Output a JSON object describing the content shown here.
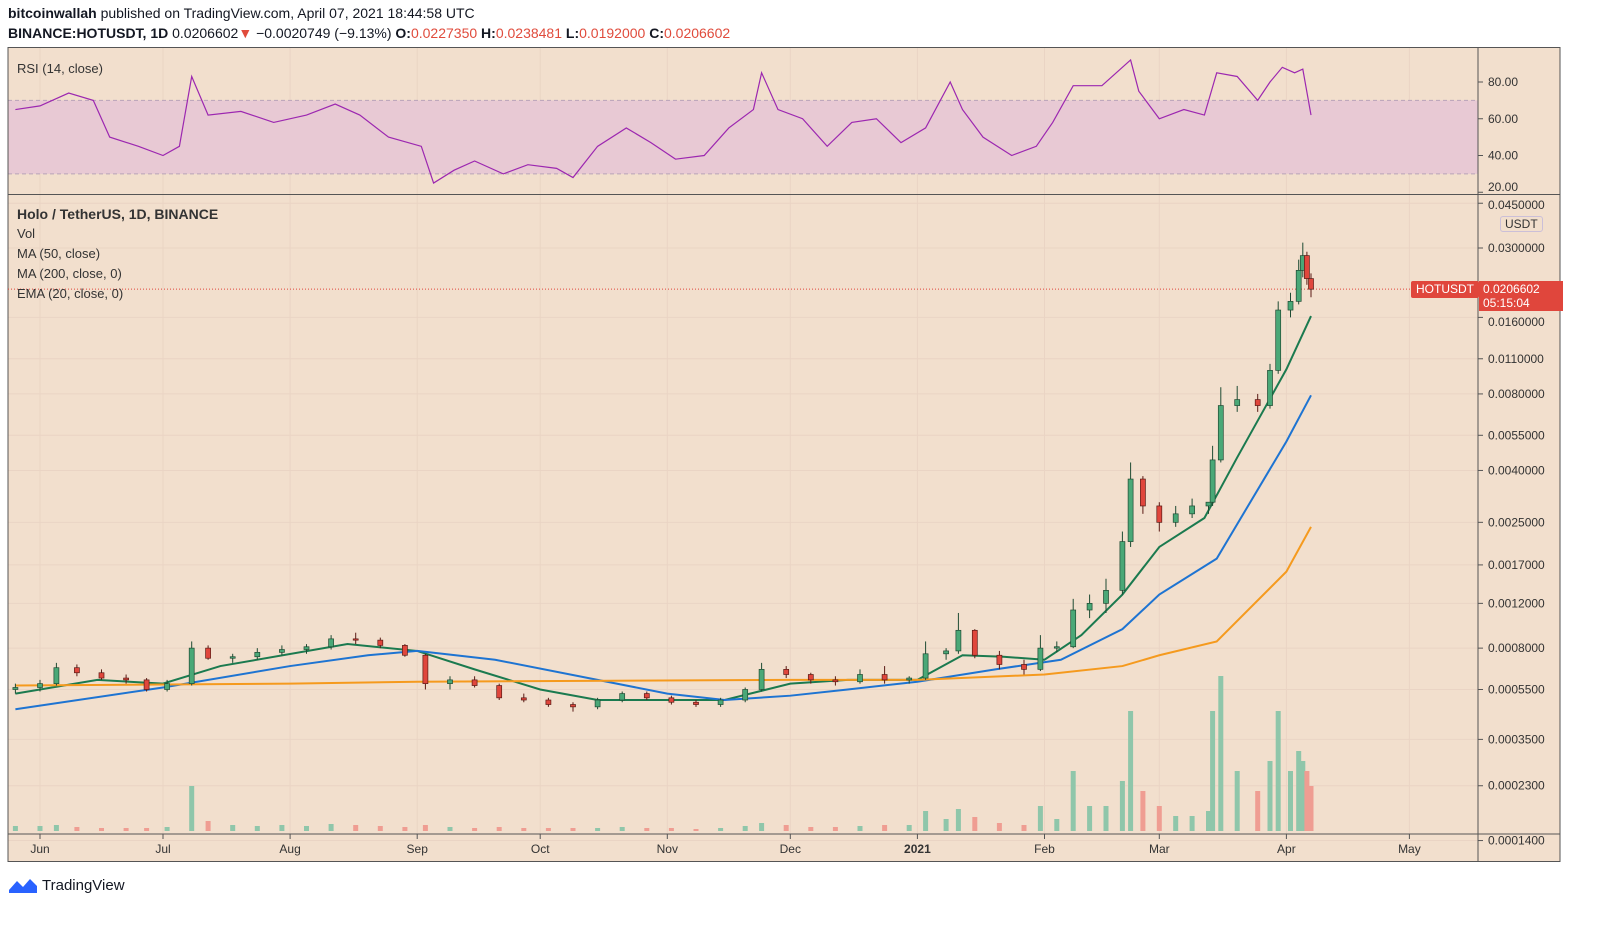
{
  "header": {
    "author": "bitcoinwallah",
    "published_text": "published on TradingView.com, April 07, 2021 18:44:58 UTC",
    "symbol": "BINANCE:HOTUSDT, 1D",
    "last": "0.0206602",
    "change": "−0.0020749 (−9.13%)",
    "o_label": "O:",
    "o": "0.0227350",
    "h_label": "H:",
    "h": "0.0238481",
    "l_label": "L:",
    "l": "0.0192000",
    "c_label": "C:",
    "c": "0.0206602"
  },
  "legend": {
    "rsi": "RSI (14, close)",
    "title": "Holo / TetherUS, 1D, BINANCE",
    "vol": "Vol",
    "ma50": "MA (50, close)",
    "ma200": "MA (200, close, 0)",
    "ema20": "EMA (20, close, 0)"
  },
  "price_label": {
    "symbol": "HOTUSDT",
    "price": "0.0206602",
    "countdown": "05:15:04",
    "currency": "USDT"
  },
  "footer": {
    "brand": "TradingView"
  },
  "colors": {
    "background": "#f2dfcd",
    "up": "#4aa877",
    "down": "#e0463c",
    "rsi": "#9c27b0",
    "ema20": "#1b7a4f",
    "ma50": "#1e74d2",
    "ma200": "#f59a1e"
  },
  "chart_data": [
    {
      "type": "line",
      "title": "RSI (14, close)",
      "yticks": [
        "20.00",
        "40.00",
        "60.00",
        "80.00"
      ],
      "band": [
        30,
        70
      ],
      "points": [
        [
          "2020-05-26",
          65
        ],
        [
          "2020-06-01",
          67
        ],
        [
          "2020-06-08",
          74
        ],
        [
          "2020-06-14",
          70
        ],
        [
          "2020-06-18",
          50
        ],
        [
          "2020-06-25",
          45
        ],
        [
          "2020-07-01",
          40
        ],
        [
          "2020-07-05",
          45
        ],
        [
          "2020-07-08",
          83
        ],
        [
          "2020-07-12",
          62
        ],
        [
          "2020-07-20",
          64
        ],
        [
          "2020-07-28",
          58
        ],
        [
          "2020-08-05",
          62
        ],
        [
          "2020-08-12",
          68
        ],
        [
          "2020-08-18",
          62
        ],
        [
          "2020-08-25",
          50
        ],
        [
          "2020-09-02",
          45
        ],
        [
          "2020-09-05",
          25
        ],
        [
          "2020-09-10",
          32
        ],
        [
          "2020-09-15",
          37
        ],
        [
          "2020-09-22",
          30
        ],
        [
          "2020-09-28",
          35
        ],
        [
          "2020-10-05",
          33
        ],
        [
          "2020-10-09",
          28
        ],
        [
          "2020-10-15",
          45
        ],
        [
          "2020-10-22",
          55
        ],
        [
          "2020-10-28",
          47
        ],
        [
          "2020-11-03",
          38
        ],
        [
          "2020-11-10",
          40
        ],
        [
          "2020-11-16",
          55
        ],
        [
          "2020-11-22",
          65
        ],
        [
          "2020-11-24",
          85
        ],
        [
          "2020-11-28",
          65
        ],
        [
          "2020-12-04",
          60
        ],
        [
          "2020-12-10",
          45
        ],
        [
          "2020-12-16",
          58
        ],
        [
          "2020-12-22",
          60
        ],
        [
          "2020-12-28",
          47
        ],
        [
          "2021-01-03",
          55
        ],
        [
          "2021-01-09",
          80
        ],
        [
          "2021-01-12",
          65
        ],
        [
          "2021-01-17",
          50
        ],
        [
          "2021-01-24",
          40
        ],
        [
          "2021-01-30",
          45
        ],
        [
          "2021-02-03",
          58
        ],
        [
          "2021-02-08",
          78
        ],
        [
          "2021-02-15",
          78
        ],
        [
          "2021-02-22",
          92
        ],
        [
          "2021-02-24",
          75
        ],
        [
          "2021-03-01",
          60
        ],
        [
          "2021-03-07",
          65
        ],
        [
          "2021-03-12",
          62
        ],
        [
          "2021-03-15",
          85
        ],
        [
          "2021-03-20",
          83
        ],
        [
          "2021-03-25",
          70
        ],
        [
          "2021-03-28",
          80
        ],
        [
          "2021-03-31",
          88
        ],
        [
          "2021-04-03",
          85
        ],
        [
          "2021-04-05",
          87
        ],
        [
          "2021-04-07",
          62
        ]
      ]
    },
    {
      "type": "candlestick",
      "title": "Holo / TetherUS, 1D, BINANCE",
      "yscale": "log",
      "yticks": [
        "0.0450000",
        "0.0300000",
        "0.0160000",
        "0.0110000",
        "0.0080000",
        "0.0055000",
        "0.0040000",
        "0.0025000",
        "0.0017000",
        "0.0012000",
        "0.0008000",
        "0.0005500",
        "0.0003500",
        "0.0002300",
        "0.0001400"
      ],
      "xticks": [
        [
          "2020-06-01",
          "Jun"
        ],
        [
          "2020-07-01",
          "Jul"
        ],
        [
          "2020-08-01",
          "Aug"
        ],
        [
          "2020-09-01",
          "Sep"
        ],
        [
          "2020-10-01",
          "Oct"
        ],
        [
          "2020-11-01",
          "Nov"
        ],
        [
          "2020-12-01",
          "Dec"
        ],
        [
          "2021-01-01",
          "2021"
        ],
        [
          "2021-02-01",
          "Feb"
        ],
        [
          "2021-03-01",
          "Mar"
        ],
        [
          "2021-04-01",
          "Apr"
        ],
        [
          "2021-05-01",
          "May"
        ]
      ],
      "last_price": 0.0206602,
      "candles_columns": [
        "date",
        "open",
        "high",
        "low",
        "close",
        "volume_relative"
      ],
      "candles": [
        [
          "2020-05-26",
          0.00055,
          0.00058,
          0.00053,
          0.00056,
          5
        ],
        [
          "2020-06-01",
          0.00056,
          0.0006,
          0.00054,
          0.00058,
          5
        ],
        [
          "2020-06-05",
          0.00058,
          0.0007,
          0.00057,
          0.00067,
          6
        ],
        [
          "2020-06-10",
          0.00067,
          0.00069,
          0.00062,
          0.00064,
          4
        ],
        [
          "2020-06-16",
          0.00064,
          0.00066,
          0.0006,
          0.00061,
          3
        ],
        [
          "2020-06-22",
          0.00061,
          0.00063,
          0.00058,
          0.0006,
          3
        ],
        [
          "2020-06-27",
          0.0006,
          0.00061,
          0.00054,
          0.00055,
          3
        ],
        [
          "2020-07-02",
          0.00055,
          0.0006,
          0.00054,
          0.00058,
          4
        ],
        [
          "2020-07-08",
          0.00058,
          0.00085,
          0.00057,
          0.0008,
          45
        ],
        [
          "2020-07-12",
          0.0008,
          0.00082,
          0.00072,
          0.00073,
          10
        ],
        [
          "2020-07-18",
          0.00073,
          0.00076,
          0.0007,
          0.00074,
          6
        ],
        [
          "2020-07-24",
          0.00074,
          0.0008,
          0.00072,
          0.00077,
          5
        ],
        [
          "2020-07-30",
          0.00077,
          0.00082,
          0.00075,
          0.00079,
          6
        ],
        [
          "2020-08-05",
          0.00079,
          0.00083,
          0.00076,
          0.00081,
          5
        ],
        [
          "2020-08-11",
          0.00081,
          0.0009,
          0.00079,
          0.00087,
          7
        ],
        [
          "2020-08-17",
          0.00087,
          0.00092,
          0.00083,
          0.00086,
          6
        ],
        [
          "2020-08-23",
          0.00086,
          0.00088,
          0.0008,
          0.00082,
          5
        ],
        [
          "2020-08-29",
          0.00082,
          0.00083,
          0.00074,
          0.00075,
          4
        ],
        [
          "2020-09-03",
          0.00075,
          0.00076,
          0.00055,
          0.00058,
          6
        ],
        [
          "2020-09-09",
          0.00058,
          0.00062,
          0.00055,
          0.0006,
          4
        ],
        [
          "2020-09-15",
          0.0006,
          0.00062,
          0.00056,
          0.00057,
          3
        ],
        [
          "2020-09-21",
          0.00057,
          0.00058,
          0.0005,
          0.00051,
          4
        ],
        [
          "2020-09-27",
          0.00051,
          0.00053,
          0.00049,
          0.0005,
          3
        ],
        [
          "2020-10-03",
          0.0005,
          0.00051,
          0.00047,
          0.00048,
          3
        ],
        [
          "2020-10-09",
          0.00048,
          0.00049,
          0.00045,
          0.00047,
          3
        ],
        [
          "2020-10-15",
          0.00047,
          0.00051,
          0.00046,
          0.0005,
          3
        ],
        [
          "2020-10-21",
          0.0005,
          0.00054,
          0.00049,
          0.00053,
          4
        ],
        [
          "2020-10-27",
          0.00053,
          0.00054,
          0.0005,
          0.00051,
          3
        ],
        [
          "2020-11-02",
          0.00051,
          0.00052,
          0.00048,
          0.00049,
          3
        ],
        [
          "2020-11-08",
          0.00049,
          0.0005,
          0.00047,
          0.00048,
          2
        ],
        [
          "2020-11-14",
          0.00048,
          0.00051,
          0.00047,
          0.0005,
          3
        ],
        [
          "2020-11-20",
          0.0005,
          0.00056,
          0.00049,
          0.00055,
          5
        ],
        [
          "2020-11-24",
          0.00055,
          0.0007,
          0.00054,
          0.00066,
          8
        ],
        [
          "2020-11-30",
          0.00066,
          0.00068,
          0.00061,
          0.00063,
          6
        ],
        [
          "2020-12-06",
          0.00063,
          0.00064,
          0.00058,
          0.0006,
          4
        ],
        [
          "2020-12-12",
          0.0006,
          0.00062,
          0.00057,
          0.00059,
          4
        ],
        [
          "2020-12-18",
          0.00059,
          0.00066,
          0.00058,
          0.00063,
          5
        ],
        [
          "2020-12-24",
          0.00063,
          0.00068,
          0.00058,
          0.0006,
          6
        ],
        [
          "2020-12-30",
          0.0006,
          0.00062,
          0.00058,
          0.00061,
          6
        ],
        [
          "2021-01-03",
          0.00061,
          0.00085,
          0.0006,
          0.00076,
          20
        ],
        [
          "2021-01-08",
          0.00076,
          0.0008,
          0.00072,
          0.00078,
          12
        ],
        [
          "2021-01-11",
          0.00078,
          0.0011,
          0.00076,
          0.00094,
          22
        ],
        [
          "2021-01-15",
          0.00094,
          0.00095,
          0.00073,
          0.00075,
          14
        ],
        [
          "2021-01-21",
          0.00075,
          0.00078,
          0.00066,
          0.00069,
          8
        ],
        [
          "2021-01-27",
          0.00069,
          0.00072,
          0.00063,
          0.00066,
          6
        ],
        [
          "2021-01-31",
          0.00066,
          0.0009,
          0.00065,
          0.0008,
          25
        ],
        [
          "2021-02-04",
          0.0008,
          0.00085,
          0.00077,
          0.00081,
          12
        ],
        [
          "2021-02-08",
          0.00081,
          0.00125,
          0.0008,
          0.00113,
          60
        ],
        [
          "2021-02-12",
          0.00113,
          0.0013,
          0.00105,
          0.0012,
          25
        ],
        [
          "2021-02-16",
          0.0012,
          0.0015,
          0.0011,
          0.00135,
          25
        ],
        [
          "2021-02-20",
          0.00135,
          0.0023,
          0.0013,
          0.0021,
          50
        ],
        [
          "2021-02-22",
          0.0021,
          0.0043,
          0.002,
          0.0037,
          120
        ],
        [
          "2021-02-25",
          0.0037,
          0.0038,
          0.0027,
          0.0029,
          40
        ],
        [
          "2021-03-01",
          0.0029,
          0.003,
          0.0023,
          0.0025,
          25
        ],
        [
          "2021-03-05",
          0.0025,
          0.0029,
          0.0024,
          0.0027,
          15
        ],
        [
          "2021-03-09",
          0.0027,
          0.0031,
          0.0026,
          0.0029,
          15
        ],
        [
          "2021-03-13",
          0.0029,
          0.003,
          0.0027,
          0.003,
          20
        ],
        [
          "2021-03-14",
          0.003,
          0.005,
          0.0029,
          0.0044,
          120
        ],
        [
          "2021-03-16",
          0.0044,
          0.0085,
          0.0043,
          0.0072,
          155
        ],
        [
          "2021-03-20",
          0.0072,
          0.0086,
          0.0068,
          0.0076,
          60
        ],
        [
          "2021-03-25",
          0.0076,
          0.008,
          0.0068,
          0.0072,
          40
        ],
        [
          "2021-03-28",
          0.0072,
          0.0105,
          0.007,
          0.0099,
          70
        ],
        [
          "2021-03-30",
          0.0099,
          0.0185,
          0.0096,
          0.0171,
          120
        ],
        [
          "2021-04-02",
          0.0171,
          0.02,
          0.016,
          0.0185,
          60
        ],
        [
          "2021-04-04",
          0.0185,
          0.027,
          0.018,
          0.0245,
          80
        ],
        [
          "2021-04-05",
          0.0245,
          0.0315,
          0.023,
          0.028,
          70
        ],
        [
          "2021-04-06",
          0.028,
          0.029,
          0.0215,
          0.02274,
          60
        ],
        [
          "2021-04-07",
          0.022735,
          0.0238481,
          0.0192,
          0.0206602,
          45
        ]
      ],
      "series": [
        {
          "name": "EMA (20, close, 0)",
          "key": "ema20",
          "points": [
            [
              "2020-05-26",
              0.00053
            ],
            [
              "2020-06-15",
              0.0006
            ],
            [
              "2020-07-01",
              0.00058
            ],
            [
              "2020-07-15",
              0.00068
            ],
            [
              "2020-08-15",
              0.00083
            ],
            [
              "2020-09-01",
              0.00078
            ],
            [
              "2020-09-15",
              0.00066
            ],
            [
              "2020-10-01",
              0.00055
            ],
            [
              "2020-10-15",
              0.0005
            ],
            [
              "2020-11-01",
              0.0005
            ],
            [
              "2020-11-15",
              0.0005
            ],
            [
              "2020-12-01",
              0.00058
            ],
            [
              "2020-12-15",
              0.0006
            ],
            [
              "2021-01-01",
              0.0006
            ],
            [
              "2021-01-12",
              0.00075
            ],
            [
              "2021-01-22",
              0.00074
            ],
            [
              "2021-02-01",
              0.00072
            ],
            [
              "2021-02-10",
              0.0009
            ],
            [
              "2021-02-20",
              0.0013
            ],
            [
              "2021-03-01",
              0.002
            ],
            [
              "2021-03-12",
              0.0026
            ],
            [
              "2021-03-20",
              0.0045
            ],
            [
              "2021-04-01",
              0.01
            ],
            [
              "2021-04-07",
              0.0162
            ]
          ]
        },
        {
          "name": "MA (50, close)",
          "key": "ma50",
          "points": [
            [
              "2020-05-26",
              0.00046
            ],
            [
              "2020-07-01",
              0.00056
            ],
            [
              "2020-08-01",
              0.00068
            ],
            [
              "2020-08-20",
              0.00075
            ],
            [
              "2020-09-01",
              0.00078
            ],
            [
              "2020-09-20",
              0.00072
            ],
            [
              "2020-10-15",
              0.0006
            ],
            [
              "2020-11-01",
              0.00053
            ],
            [
              "2020-11-15",
              0.0005
            ],
            [
              "2020-12-01",
              0.00052
            ],
            [
              "2020-12-15",
              0.00055
            ],
            [
              "2021-01-01",
              0.00059
            ],
            [
              "2021-01-20",
              0.00066
            ],
            [
              "2021-02-05",
              0.00072
            ],
            [
              "2021-02-20",
              0.00095
            ],
            [
              "2021-03-01",
              0.0013
            ],
            [
              "2021-03-15",
              0.0018
            ],
            [
              "2021-04-01",
              0.0052
            ],
            [
              "2021-04-07",
              0.0079
            ]
          ]
        },
        {
          "name": "MA (200, close, 0)",
          "key": "ma200",
          "points": [
            [
              "2020-05-26",
              0.00057
            ],
            [
              "2020-08-01",
              0.00058
            ],
            [
              "2020-09-01",
              0.00059
            ],
            [
              "2020-12-01",
              0.0006
            ],
            [
              "2021-01-01",
              0.0006
            ],
            [
              "2021-02-01",
              0.00063
            ],
            [
              "2021-02-20",
              0.00068
            ],
            [
              "2021-03-01",
              0.00075
            ],
            [
              "2021-03-15",
              0.00085
            ],
            [
              "2021-04-01",
              0.0016
            ],
            [
              "2021-04-07",
              0.0024
            ]
          ]
        }
      ]
    }
  ]
}
